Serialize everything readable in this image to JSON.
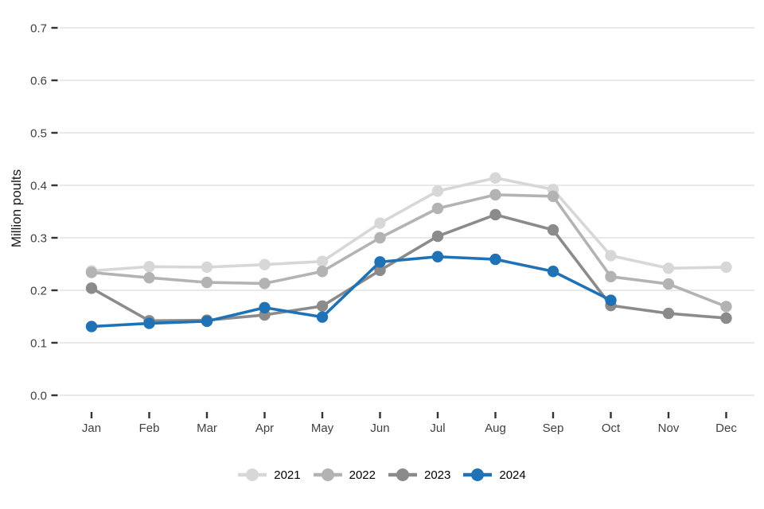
{
  "chart_data": {
    "type": "line",
    "title": "",
    "xlabel": "",
    "ylabel": "Million poults",
    "ylim": [
      0.0,
      0.7
    ],
    "grid": true,
    "legend_position": "bottom",
    "categories": [
      "Jan",
      "Feb",
      "Mar",
      "Apr",
      "May",
      "Jun",
      "Jul",
      "Aug",
      "Sep",
      "Oct",
      "Nov",
      "Dec"
    ],
    "y_ticks": [
      0.0,
      0.1,
      0.2,
      0.3,
      0.4,
      0.5,
      0.6,
      0.7
    ],
    "y_tick_labels": [
      "0.0",
      "0.1",
      "0.2",
      "0.3",
      "0.4",
      "0.5",
      "0.6",
      "0.7"
    ],
    "series": [
      {
        "name": "2021",
        "color": "#d7d7d7",
        "values": [
          0.237,
          0.245,
          0.244,
          0.249,
          0.255,
          0.328,
          0.389,
          0.414,
          0.392,
          0.266,
          0.242,
          0.244
        ]
      },
      {
        "name": "2022",
        "color": "#b3b3b3",
        "values": [
          0.234,
          0.224,
          0.215,
          0.213,
          0.236,
          0.3,
          0.356,
          0.382,
          0.379,
          0.226,
          0.212,
          0.169
        ]
      },
      {
        "name": "2023",
        "color": "#8b8b8b",
        "values": [
          0.204,
          0.142,
          0.143,
          0.153,
          0.17,
          0.238,
          0.303,
          0.344,
          0.315,
          0.171,
          0.156,
          0.147
        ]
      },
      {
        "name": "2024",
        "color": "#1f72b5",
        "values": [
          0.131,
          0.137,
          0.141,
          0.167,
          0.149,
          0.254,
          0.264,
          0.259,
          0.236,
          0.181,
          null,
          null
        ]
      }
    ],
    "style": {
      "grid_color": "#e9e9e9",
      "tick_color": "#333333",
      "tick_label_color": "#404040",
      "background": "#ffffff"
    }
  }
}
